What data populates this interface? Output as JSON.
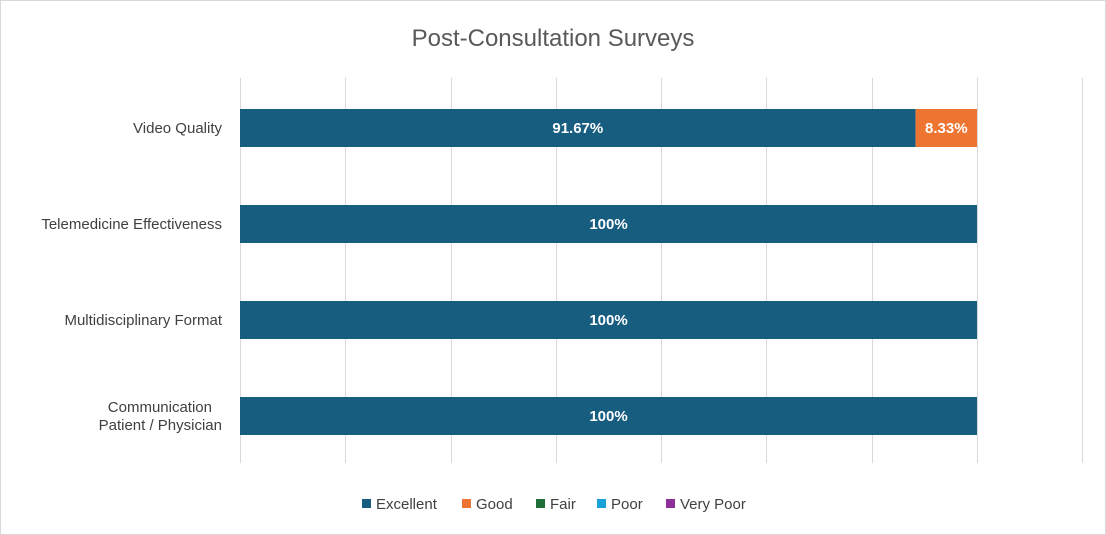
{
  "chart_data": {
    "type": "bar",
    "orientation": "horizontal",
    "stacked": "percent",
    "title": "Post-Consultation Surveys",
    "categories": [
      [
        "Video Quality"
      ],
      [
        "Telemedicine Effectiveness"
      ],
      [
        "Multidisciplinary Format"
      ],
      [
        "Communication",
        "Patient / Physician"
      ]
    ],
    "series": [
      {
        "name": "Excellent",
        "color": "#175d80",
        "values": [
          91.67,
          100,
          100,
          100
        ],
        "labels": [
          "91.67%",
          "100%",
          "100%",
          "100%"
        ]
      },
      {
        "name": "Good",
        "color": "#ed7531",
        "values": [
          8.33,
          0,
          0,
          0
        ],
        "labels": [
          "8.33%",
          "",
          "",
          ""
        ]
      },
      {
        "name": "Fair",
        "color": "#1e6e3a",
        "values": [
          0,
          0,
          0,
          0
        ],
        "labels": [
          "",
          "",
          "",
          ""
        ]
      },
      {
        "name": "Poor",
        "color": "#1aa2d8",
        "values": [
          0,
          0,
          0,
          0
        ],
        "labels": [
          "",
          "",
          "",
          ""
        ]
      },
      {
        "name": "Very Poor",
        "color": "#8e2f99",
        "values": [
          0,
          0,
          0,
          0
        ],
        "labels": [
          "",
          "",
          "",
          ""
        ]
      }
    ],
    "xlim": [
      0,
      100
    ],
    "grid": true,
    "legend_position": "bottom"
  }
}
